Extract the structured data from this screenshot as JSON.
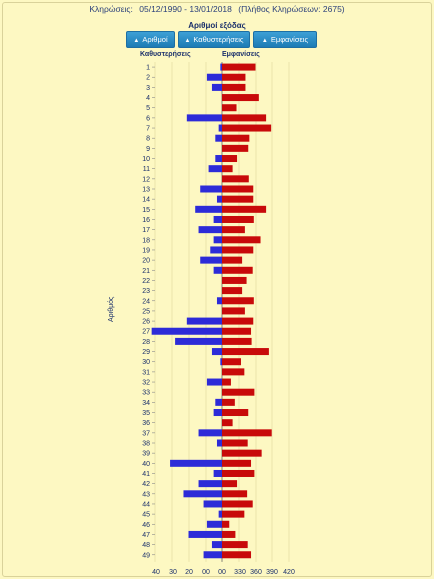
{
  "header": {
    "label": "Κληρώσεις:",
    "range": "05/12/1990 - 13/01/2018",
    "count_note": "(Πλήθος Κληρώσεων: 2675)"
  },
  "subtitle": "Αριθμοί εξόδας",
  "buttons": [
    {
      "label": "Αριθμοί",
      "icon": "triangle-up-icon"
    },
    {
      "label": "Καθυστερήσεις",
      "icon": "triangle-up-icon"
    },
    {
      "label": "Εμφανίσεις",
      "icon": "triangle-up-icon"
    }
  ],
  "colors": {
    "delays": "#2d2bd8",
    "appearances": "#c80a0a",
    "background": "#fdf8c2"
  },
  "chart_data": {
    "type": "bar",
    "orientation": "horizontal",
    "ylabel": "Αριθμός",
    "categories": [
      "1",
      "2",
      "3",
      "4",
      "5",
      "6",
      "7",
      "8",
      "9",
      "10",
      "11",
      "12",
      "13",
      "14",
      "15",
      "16",
      "17",
      "18",
      "19",
      "20",
      "21",
      "22",
      "23",
      "24",
      "25",
      "26",
      "27",
      "28",
      "29",
      "30",
      "31",
      "32",
      "33",
      "34",
      "35",
      "36",
      "37",
      "38",
      "39",
      "40",
      "41",
      "42",
      "43",
      "44",
      "45",
      "46",
      "47",
      "48",
      "49"
    ],
    "series": [
      {
        "name": "Καθυστερήσεις",
        "side": "left",
        "xlim": [
          0,
          40
        ],
        "ticks": [
          "40",
          "30",
          "20",
          "00"
        ],
        "values": [
          1,
          9,
          6,
          0,
          0,
          21,
          2,
          4,
          0,
          4,
          8,
          0,
          13,
          3,
          16,
          5,
          14,
          5,
          7,
          13,
          5,
          0,
          0,
          3,
          0,
          21,
          42,
          28,
          6,
          1,
          0,
          9,
          0,
          4,
          5,
          0,
          14,
          3,
          0,
          31,
          5,
          14,
          23,
          11,
          2,
          9,
          20,
          6,
          11
        ]
      },
      {
        "name": "Εμφανίσεις",
        "side": "right",
        "xlim": [
          300,
          420
        ],
        "ticks": [
          "00",
          "330",
          "360",
          "390",
          "420"
        ],
        "values": [
          360,
          342,
          342,
          366,
          326,
          379,
          388,
          349,
          347,
          327,
          319,
          348,
          356,
          356,
          379,
          357,
          341,
          369,
          356,
          336,
          355,
          344,
          336,
          357,
          341,
          356,
          352,
          353,
          384,
          334,
          340,
          316,
          358,
          323,
          347,
          319,
          389,
          346,
          371,
          352,
          358,
          327,
          345,
          355,
          340,
          313,
          324,
          346,
          352
        ]
      }
    ]
  }
}
